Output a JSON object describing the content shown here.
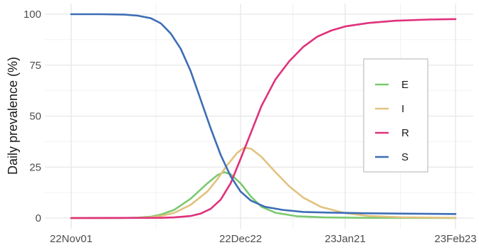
{
  "chart_data": {
    "type": "line",
    "title": "",
    "xlabel": "",
    "ylabel": "Daily prevalence (%)",
    "x_ticks": [
      "22Nov01",
      "22Dec22",
      "23Jan21",
      "23Feb23"
    ],
    "y_ticks": [
      "0",
      "25",
      "50",
      "75",
      "100"
    ],
    "ylim": [
      0,
      100
    ],
    "grid": true,
    "legend_position": "right",
    "series": [
      {
        "name": "E",
        "color": "#7bc96f",
        "points": [
          [
            "2022-11-01",
            0
          ],
          [
            "2022-11-15",
            0
          ],
          [
            "2022-11-21",
            0.2
          ],
          [
            "2022-11-25",
            0.7
          ],
          [
            "2022-11-28",
            1.7
          ],
          [
            "2022-12-02",
            4
          ],
          [
            "2022-12-07",
            9.5
          ],
          [
            "2022-12-12",
            17
          ],
          [
            "2022-12-15",
            21
          ],
          [
            "2022-12-17",
            22.5
          ],
          [
            "2022-12-19",
            21.5
          ],
          [
            "2022-12-22",
            17
          ],
          [
            "2022-12-25",
            10.5
          ],
          [
            "2022-12-28",
            5.5
          ],
          [
            "2023-01-01",
            2.6
          ],
          [
            "2023-01-07",
            0.9
          ],
          [
            "2023-01-15",
            0.3
          ],
          [
            "2023-01-25",
            0.1
          ],
          [
            "2023-02-23",
            0
          ]
        ]
      },
      {
        "name": "I",
        "color": "#e2c27f",
        "points": [
          [
            "2022-11-01",
            0
          ],
          [
            "2022-11-15",
            0
          ],
          [
            "2022-11-21",
            0.1
          ],
          [
            "2022-11-25",
            0.4
          ],
          [
            "2022-11-28",
            1
          ],
          [
            "2022-12-02",
            2.5
          ],
          [
            "2022-12-07",
            6.5
          ],
          [
            "2022-12-12",
            13
          ],
          [
            "2022-12-15",
            19
          ],
          [
            "2022-12-18",
            26
          ],
          [
            "2022-12-21",
            32
          ],
          [
            "2022-12-23",
            34.5
          ],
          [
            "2022-12-25",
            34
          ],
          [
            "2022-12-28",
            30
          ],
          [
            "2023-01-01",
            22.5
          ],
          [
            "2023-01-05",
            15.5
          ],
          [
            "2023-01-09",
            10
          ],
          [
            "2023-01-14",
            5.5
          ],
          [
            "2023-01-21",
            2.4
          ],
          [
            "2023-01-28",
            1
          ],
          [
            "2023-02-07",
            0.4
          ],
          [
            "2023-02-23",
            0.1
          ]
        ]
      },
      {
        "name": "R",
        "color": "#e0317c",
        "points": [
          [
            "2022-11-01",
            0
          ],
          [
            "2022-11-28",
            0.1
          ],
          [
            "2022-12-02",
            0.3
          ],
          [
            "2022-12-07",
            1
          ],
          [
            "2022-12-10",
            2.2
          ],
          [
            "2022-12-13",
            4.5
          ],
          [
            "2022-12-16",
            9
          ],
          [
            "2022-12-19",
            17
          ],
          [
            "2022-12-22",
            29
          ],
          [
            "2022-12-25",
            42
          ],
          [
            "2022-12-28",
            55
          ],
          [
            "2023-01-01",
            68
          ],
          [
            "2023-01-05",
            77
          ],
          [
            "2023-01-09",
            84
          ],
          [
            "2023-01-13",
            89
          ],
          [
            "2023-01-17",
            92
          ],
          [
            "2023-01-21",
            94
          ],
          [
            "2023-01-28",
            95.7
          ],
          [
            "2023-02-05",
            96.8
          ],
          [
            "2023-02-15",
            97.4
          ],
          [
            "2023-02-23",
            97.6
          ]
        ]
      },
      {
        "name": "S",
        "color": "#3d6db5",
        "points": [
          [
            "2022-11-01",
            100
          ],
          [
            "2022-11-10",
            100
          ],
          [
            "2022-11-17",
            99.8
          ],
          [
            "2022-11-21",
            99.3
          ],
          [
            "2022-11-25",
            98
          ],
          [
            "2022-11-28",
            95.5
          ],
          [
            "2022-12-01",
            90.5
          ],
          [
            "2022-12-04",
            83
          ],
          [
            "2022-12-07",
            72
          ],
          [
            "2022-12-10",
            58
          ],
          [
            "2022-12-13",
            44
          ],
          [
            "2022-12-16",
            31
          ],
          [
            "2022-12-19",
            20.5
          ],
          [
            "2022-12-22",
            13
          ],
          [
            "2022-12-25",
            8.5
          ],
          [
            "2022-12-29",
            5.5
          ],
          [
            "2023-01-03",
            4
          ],
          [
            "2023-01-09",
            3
          ],
          [
            "2023-01-16",
            2.7
          ],
          [
            "2023-01-25",
            2.4
          ],
          [
            "2023-02-05",
            2.2
          ],
          [
            "2023-02-23",
            2
          ]
        ]
      }
    ]
  }
}
